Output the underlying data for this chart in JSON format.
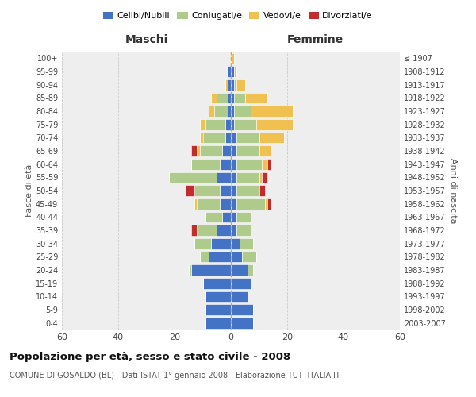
{
  "age_groups": [
    "0-4",
    "5-9",
    "10-14",
    "15-19",
    "20-24",
    "25-29",
    "30-34",
    "35-39",
    "40-44",
    "45-49",
    "50-54",
    "55-59",
    "60-64",
    "65-69",
    "70-74",
    "75-79",
    "80-84",
    "85-89",
    "90-94",
    "95-99",
    "100+"
  ],
  "birth_years": [
    "2003-2007",
    "1998-2002",
    "1993-1997",
    "1988-1992",
    "1983-1987",
    "1978-1982",
    "1973-1977",
    "1968-1972",
    "1963-1967",
    "1958-1962",
    "1953-1957",
    "1948-1952",
    "1943-1947",
    "1938-1942",
    "1933-1937",
    "1928-1932",
    "1923-1927",
    "1918-1922",
    "1913-1917",
    "1908-1912",
    "≤ 1907"
  ],
  "male": {
    "celibi": [
      9,
      9,
      9,
      10,
      14,
      8,
      7,
      5,
      3,
      4,
      4,
      5,
      4,
      3,
      2,
      2,
      1,
      1,
      1,
      1,
      0
    ],
    "coniugati": [
      0,
      0,
      0,
      0,
      1,
      3,
      6,
      7,
      6,
      8,
      9,
      17,
      10,
      8,
      8,
      7,
      5,
      4,
      0,
      0,
      0
    ],
    "vedovi": [
      0,
      0,
      0,
      0,
      0,
      0,
      0,
      0,
      0,
      1,
      0,
      0,
      0,
      1,
      1,
      2,
      2,
      2,
      1,
      0,
      0
    ],
    "divorziati": [
      0,
      0,
      0,
      0,
      0,
      0,
      0,
      2,
      0,
      0,
      3,
      0,
      0,
      2,
      0,
      0,
      0,
      0,
      0,
      0,
      0
    ]
  },
  "female": {
    "nubili": [
      8,
      8,
      6,
      7,
      6,
      4,
      3,
      2,
      2,
      2,
      2,
      2,
      2,
      2,
      2,
      1,
      1,
      1,
      1,
      1,
      0
    ],
    "coniugate": [
      0,
      0,
      0,
      0,
      2,
      5,
      5,
      5,
      5,
      10,
      8,
      8,
      9,
      8,
      8,
      8,
      6,
      4,
      1,
      0,
      0
    ],
    "vedove": [
      0,
      0,
      0,
      0,
      0,
      0,
      0,
      0,
      0,
      1,
      0,
      1,
      2,
      4,
      9,
      13,
      15,
      8,
      3,
      1,
      1
    ],
    "divorziate": [
      0,
      0,
      0,
      0,
      0,
      0,
      0,
      0,
      0,
      1,
      2,
      2,
      1,
      0,
      0,
      0,
      0,
      0,
      0,
      0,
      0
    ]
  },
  "colors": {
    "celibi_nubili": "#4472C4",
    "coniugati": "#AECB8C",
    "vedovi": "#F0C050",
    "divorziati": "#C42B2B"
  },
  "title": "Popolazione per età, sesso e stato civile - 2008",
  "subtitle": "COMUNE DI GOSALDO (BL) - Dati ISTAT 1° gennaio 2008 - Elaborazione TUTTITALIA.IT",
  "ylabel_left": "Fasce di età",
  "ylabel_right": "Anni di nascita",
  "xlabel_left": "Maschi",
  "xlabel_right": "Femmine",
  "xlim": 60,
  "background_color": "#ffffff",
  "plot_background": "#eeeeee"
}
